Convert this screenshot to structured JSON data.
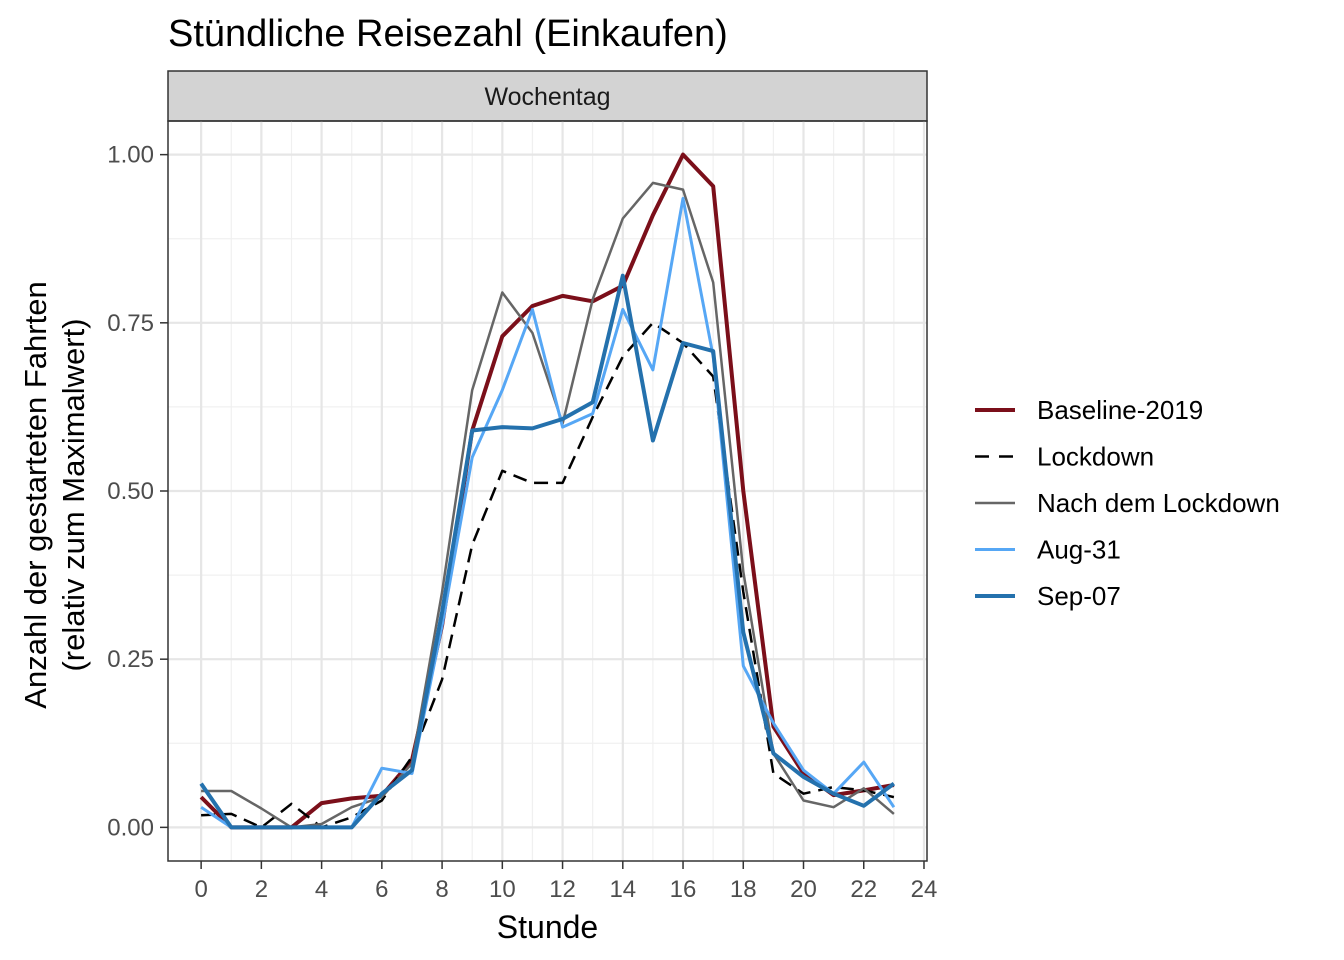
{
  "chart_data": {
    "type": "line",
    "title": "Stündliche Reisezahl (Einkaufen)",
    "facet_label": "Wochentag",
    "xlabel": "Stunde",
    "ylabel_line1": "Anzahl der gestarteten Fahrten",
    "ylabel_line2": "(relativ zum Maximalwert)",
    "xlim": [
      -1.1,
      24.1
    ],
    "ylim": [
      -0.05,
      1.05
    ],
    "x_ticks": [
      0,
      2,
      4,
      6,
      8,
      10,
      12,
      14,
      16,
      18,
      20,
      22,
      24
    ],
    "y_ticks": [
      0.0,
      0.25,
      0.5,
      0.75,
      1.0
    ],
    "y_tick_labels": [
      "0.00",
      "0.25",
      "0.50",
      "0.75",
      "1.00"
    ],
    "grid": true,
    "legend_position": "right",
    "x": [
      0,
      1,
      2,
      3,
      4,
      5,
      6,
      7,
      8,
      9,
      10,
      11,
      12,
      13,
      14,
      15,
      16,
      17,
      18,
      19,
      20,
      21,
      22,
      23
    ],
    "series": [
      {
        "name": "Baseline-2019",
        "color": "#7b0f1a",
        "width": 4,
        "dash": "",
        "values": [
          0.045,
          0.0,
          0.0,
          0.0,
          0.036,
          0.043,
          0.047,
          0.1,
          0.3,
          0.59,
          0.73,
          0.775,
          0.79,
          0.782,
          0.805,
          0.91,
          1.0,
          0.953,
          0.5,
          0.15,
          0.08,
          0.048,
          0.055,
          0.063
        ]
      },
      {
        "name": "Lockdown",
        "color": "#000000",
        "width": 2.5,
        "dash": "14,8",
        "values": [
          0.018,
          0.02,
          0.0,
          0.035,
          0.0,
          0.015,
          0.04,
          0.105,
          0.22,
          0.42,
          0.53,
          0.512,
          0.512,
          0.61,
          0.7,
          0.75,
          0.72,
          0.67,
          0.35,
          0.08,
          0.05,
          0.06,
          0.055,
          0.045
        ]
      },
      {
        "name": "Nach dem Lockdown",
        "color": "#666666",
        "width": 2.5,
        "dash": "",
        "values": [
          0.054,
          0.054,
          0.028,
          0.0,
          0.005,
          0.03,
          0.045,
          0.095,
          0.35,
          0.65,
          0.795,
          0.735,
          0.6,
          0.785,
          0.905,
          0.958,
          0.948,
          0.81,
          0.38,
          0.11,
          0.04,
          0.03,
          0.058,
          0.02
        ]
      },
      {
        "name": "Aug-31",
        "color": "#56a7f5",
        "width": 3,
        "dash": "",
        "values": [
          0.03,
          0.0,
          0.0,
          0.0,
          0.0,
          0.0,
          0.088,
          0.08,
          0.3,
          0.55,
          0.65,
          0.77,
          0.595,
          0.615,
          0.77,
          0.68,
          0.935,
          0.7,
          0.24,
          0.155,
          0.085,
          0.05,
          0.097,
          0.03
        ]
      },
      {
        "name": "Sep-07",
        "color": "#2471ad",
        "width": 4,
        "dash": "",
        "values": [
          0.065,
          0.0,
          0.0,
          0.0,
          0.0,
          0.0,
          0.05,
          0.085,
          0.32,
          0.59,
          0.595,
          0.593,
          0.607,
          0.632,
          0.82,
          0.575,
          0.72,
          0.708,
          0.29,
          0.11,
          0.075,
          0.05,
          0.032,
          0.065
        ]
      }
    ]
  }
}
